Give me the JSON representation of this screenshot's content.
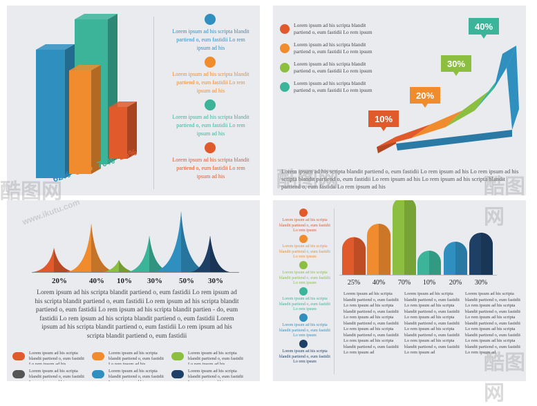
{
  "chart_data": [
    {
      "type": "bar",
      "categories": [
        "62%",
        "50%",
        "70%",
        "25%"
      ],
      "values": [
        62,
        50,
        70,
        25
      ],
      "ylim": [
        0,
        100
      ],
      "data_labels": [
        "62%",
        "50%",
        "70%",
        "25%"
      ],
      "colors": [
        "#2f8fbf",
        "#f08c2e",
        "#3bb49a",
        "#e05a2b"
      ]
    },
    {
      "type": "area",
      "categories": [
        "10%",
        "20%",
        "30%",
        "40%"
      ],
      "values": [
        10,
        20,
        30,
        40
      ],
      "data_labels": [
        "10%",
        "20%",
        "30%",
        "40%"
      ],
      "colors": [
        "#e05a2b",
        "#f08c2e",
        "#8cbf3f",
        "#3bb49a",
        "#2f8fbf"
      ]
    },
    {
      "type": "area",
      "categories": [
        "20%",
        "40%",
        "10%",
        "30%",
        "50%",
        "30%"
      ],
      "values": [
        20,
        40,
        10,
        30,
        50,
        30
      ],
      "colors": [
        "#e05a2b",
        "#f08c2e",
        "#8cbf3f",
        "#3bb49a",
        "#2f8fbf",
        "#1e3f66"
      ]
    },
    {
      "type": "bar",
      "categories": [
        "25%",
        "40%",
        "70%",
        "10%",
        "20%",
        "30%"
      ],
      "values": [
        25,
        40,
        70,
        10,
        20,
        30
      ],
      "colors": [
        "#e05a2b",
        "#f08c2e",
        "#8cbf3f",
        "#3bb49a",
        "#2f8fbf",
        "#1e3f66"
      ]
    }
  ],
  "panel1": {
    "labels": [
      "62%",
      "50%",
      "70%",
      "25%"
    ],
    "items": [
      {
        "color": "#2f8fbf",
        "text": "Lorem ipsum ad his scripta blandit partiend o, eum fastidii Lo rem ipsum ad his"
      },
      {
        "color": "#f08c2e",
        "text": "Lorem ipsum ad his scripta blandit partiend o, eum fastidii Lo rem ipsum ad his"
      },
      {
        "color": "#3bb49a",
        "text": "Lorem ipsum ad his scripta blandit partiend o, eum fastidii Lo rem ipsum ad his"
      },
      {
        "color": "#e05a2b",
        "text": "Lorem ipsum ad his scripta blandit partiend o, eum fastidii Lo rem ipsum ad his"
      }
    ]
  },
  "panel2": {
    "legend": [
      {
        "color": "#e05a2b",
        "text": "Lorem ipsum ad his scripta blandit partiend o, eum fastidii Lo rem ipsum"
      },
      {
        "color": "#f08c2e",
        "text": "Lorem ipsum ad his scripta blandit partiend o, eum fastidii Lo rem ipsum"
      },
      {
        "color": "#8cbf3f",
        "text": "Lorem ipsum ad his scripta blandit partiend o, eum fastidii Lo rem ipsum"
      },
      {
        "color": "#3bb49a",
        "text": "Lorem ipsum ad his scripta blandit partiend o, eum fastidii Lo rem ipsum"
      }
    ],
    "tags": [
      "10%",
      "20%",
      "30%",
      "40%"
    ],
    "footer": "Lorem ipsum ad his scripta blandit partiend o, eum fastidii Lo rem ipsum ad his Lo rem ipsum ad his scripta blandit partiend o, eum fastidii Lo rem ipsum ad his Lo rem ipsum ad his scripta blandit partiend o, eum fastidii Lo rem ipsum ad his"
  },
  "panel3": {
    "labels": [
      "20%",
      "40%",
      "10%",
      "30%",
      "50%",
      "30%"
    ],
    "paragraph": "Lorem ipsum ad his scripta blandit partiend o, eum fastidii Lo rem ipsum ad his scripta blandit partiend o, eum fastidii Lo rem ipsum ad his scripta blandit partiend o, eum fastidii Lo rem ipsum ad his scripta blandit partien - do, eum fastidii Lo rem ipsum ad his scripta blandit partiend o, eum fastidii Lorem ipsum ad his scripta blandit partiend o, eum fastidii Lo rem ipsum ad his scripta blandit partiend o, eum fastidii",
    "legend": [
      {
        "color": "#e05a2b",
        "text": "Lorem ipsum ad his scripta blandit partiend o, eum fastidii Lo rem ipsum ad his"
      },
      {
        "color": "#f08c2e",
        "text": "Lorem ipsum ad his scripta blandit partiend o, eum fastidii Lo rem ipsum ad his"
      },
      {
        "color": "#8cbf3f",
        "text": "Lorem ipsum ad his scripta blandit partiend o, eum fastidii Lo rem ipsum ad his"
      },
      {
        "color": "#555555",
        "text": "Lorem ipsum ad his scripta blandit partiend o, eum fastidii Lo rem ipsum ad his"
      },
      {
        "color": "#2f8fbf",
        "text": "Lorem ipsum ad his scripta blandit partiend o, eum fastidii Lo rem ipsum ad his"
      },
      {
        "color": "#1e3f66",
        "text": "Lorem ipsum ad his scripta blandit partiend o, eum fastidii Lo rem ipsum ad his"
      }
    ]
  },
  "panel4": {
    "labels": [
      "25%",
      "40%",
      "70%",
      "10%",
      "20%",
      "30%"
    ],
    "side_items": [
      {
        "color": "#e05a2b",
        "text": "Lorem ipsum ad his scripta blandit partiend o, eum fastidii Lo rem ipsum"
      },
      {
        "color": "#f08c2e",
        "text": "Lorem ipsum ad his scripta blandit partiend o, eum fastidii Lo rem ipsum"
      },
      {
        "color": "#8cbf3f",
        "text": "Lorem ipsum ad his scripta blandit partiend o, eum fastidii Lo rem ipsum"
      },
      {
        "color": "#3bb49a",
        "text": "Lorem ipsum ad his scripta blandit partiend o, eum fastidii Lo rem ipsum"
      },
      {
        "color": "#2f8fbf",
        "text": "Lorem ipsum ad his scripta blandit partiend o, eum fastidii Lo rem ipsum"
      },
      {
        "color": "#1e3f66",
        "text": "Lorem ipsum ad his scripta blandit partiend o, eum fastidii Lo rem ipsum"
      }
    ],
    "column_text": "Lorem ipsum ad his scripta blandit partiend o, eum fastidii Lo rem ipsum ad his scripta blandit partiend o, eum fastidii Lo rem ipsum ad his scripta blandit partiend o, eum fastidii Lo rem ipsum ad his scripta blandit partiend o, eum fastidii Lo rem ipsum ad his scripta blandit partiend o, eum fastidii Lo rem ipsum ad"
  },
  "watermark": {
    "text": "酷图网",
    "url": "www.ikutu.com"
  }
}
